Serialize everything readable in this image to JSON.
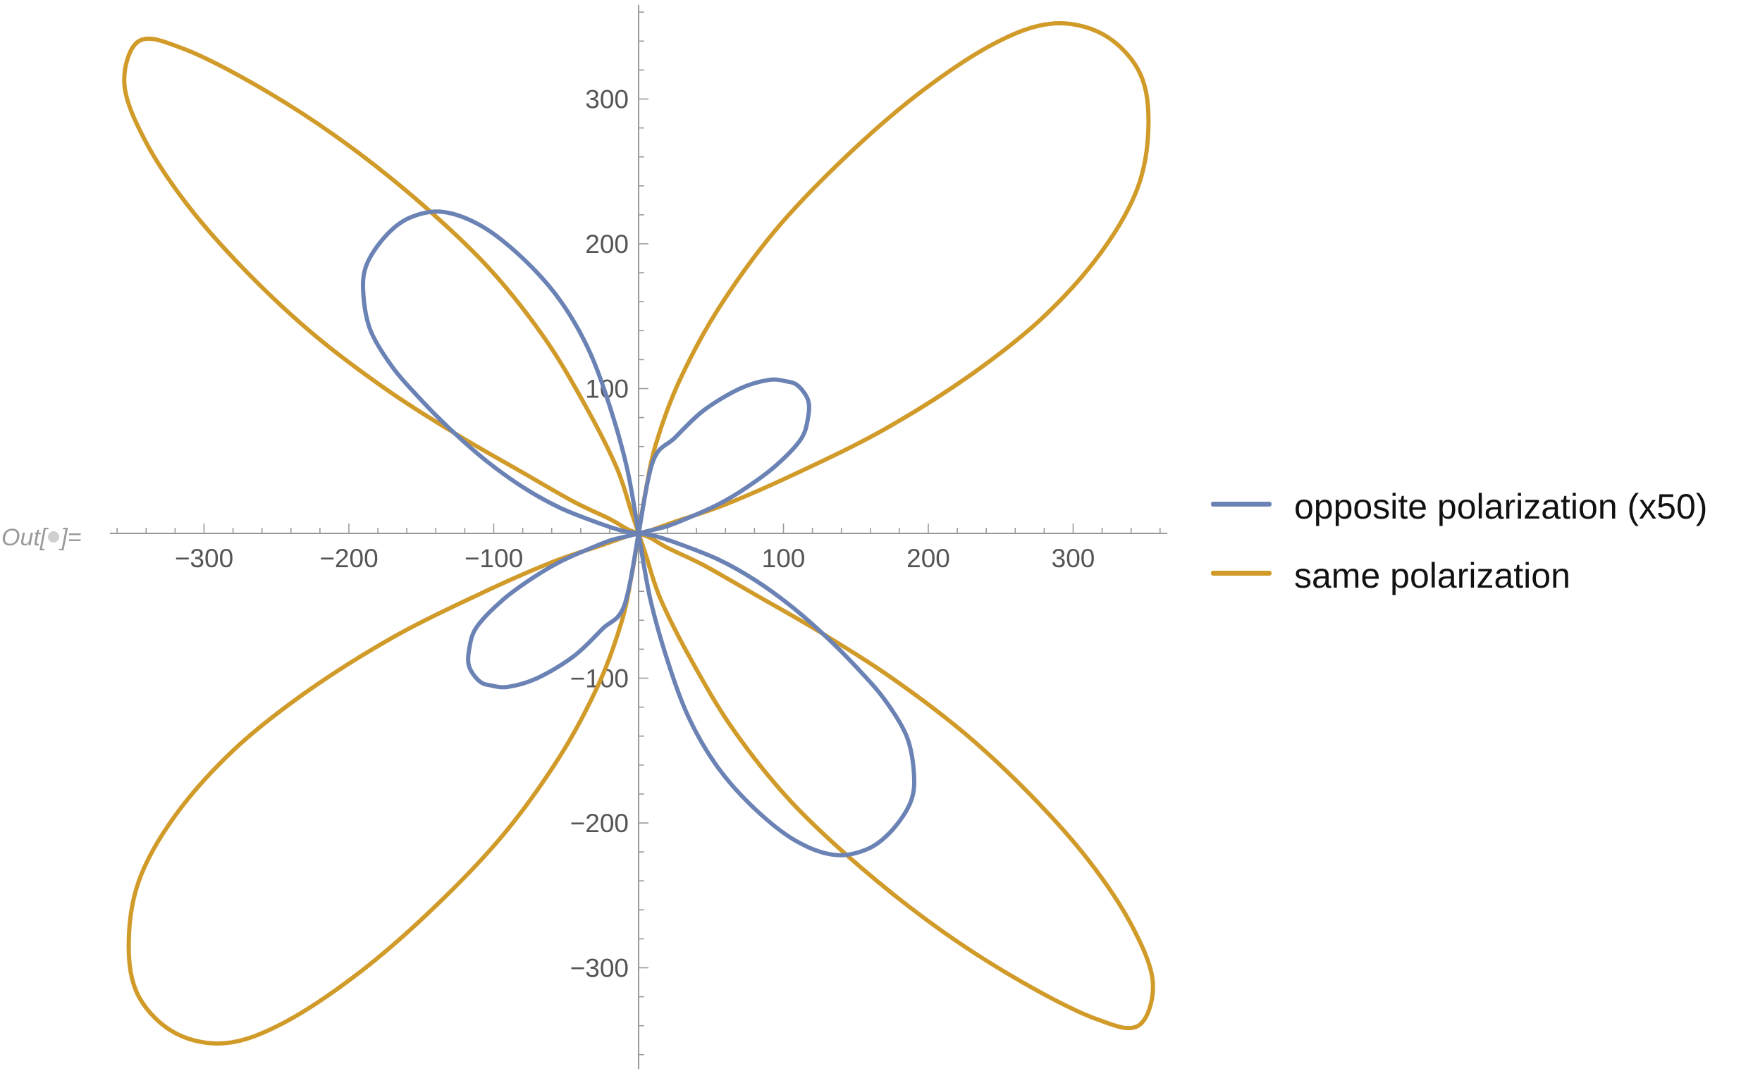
{
  "notebook": {
    "out_prefix": "Out[",
    "out_suffix": "]="
  },
  "colors": {
    "opposite": "#6B82B5",
    "same": "#D19B2A",
    "axis": "#9a9a9a",
    "text": "#555555"
  },
  "legend": {
    "items": [
      {
        "label": "opposite polarization (x50)",
        "color": "#6B82B5"
      },
      {
        "label": "same polarization",
        "color": "#D19B2A"
      }
    ]
  },
  "chart_data": {
    "type": "line",
    "title": "",
    "xlabel": "",
    "ylabel": "",
    "xlim": [
      -365,
      365
    ],
    "ylim": [
      -370,
      365
    ],
    "x_ticks": [
      -300,
      -200,
      -100,
      100,
      200,
      300
    ],
    "y_ticks": [
      -300,
      -200,
      -100,
      100,
      200,
      300
    ],
    "x_tick_labels": [
      "−300",
      "−200",
      "−100",
      "100",
      "200",
      "300"
    ],
    "y_tick_labels": [
      "−300",
      "−200",
      "−100",
      "100",
      "200",
      "300"
    ],
    "grid": false,
    "legend_position": "right",
    "series": [
      {
        "name": "opposite polarization (x50)",
        "color": "#6B82B5",
        "x": [
          0,
          -8,
          -20,
          -35,
          -55,
          -80,
          -108,
          -135,
          -158,
          -175,
          -188,
          -190,
          -185,
          -170,
          -150,
          -128,
          -105,
          -80,
          -55,
          -30,
          -12,
          0,
          0,
          10,
          25,
          45,
          70,
          90,
          102,
          110,
          117,
          117,
          112,
          95,
          75,
          55,
          35,
          20,
          8,
          0,
          0,
          8,
          20,
          35,
          55,
          80,
          108,
          135,
          158,
          175,
          188,
          190,
          185,
          170,
          150,
          128,
          105,
          80,
          55,
          30,
          12,
          0,
          0,
          -10,
          -25,
          -45,
          -70,
          -90,
          -102,
          -110,
          -117,
          -117,
          -112,
          -95,
          -75,
          -55,
          -35,
          -20,
          -8,
          0
        ],
        "y": [
          0,
          45,
          88,
          128,
          162,
          190,
          212,
          222,
          218,
          205,
          185,
          165,
          140,
          115,
          92,
          70,
          50,
          32,
          18,
          8,
          2,
          0,
          0,
          50,
          66,
          85,
          100,
          106,
          105,
          102,
          92,
          80,
          65,
          47,
          32,
          20,
          11,
          5,
          2,
          0,
          0,
          -45,
          -88,
          -128,
          -162,
          -190,
          -212,
          -222,
          -218,
          -205,
          -185,
          -165,
          -140,
          -115,
          -92,
          -70,
          -50,
          -32,
          -18,
          -8,
          -2,
          0,
          0,
          -50,
          -66,
          -85,
          -100,
          -106,
          -105,
          -102,
          -92,
          -80,
          -65,
          -47,
          -32,
          -20,
          -11,
          -5,
          -2,
          0
        ]
      },
      {
        "name": "same polarization",
        "color": "#D19B2A",
        "x": [
          0,
          5,
          12,
          28,
          55,
          95,
          145,
          195,
          245,
          285,
          320,
          345,
          352,
          345,
          320,
          280,
          230,
          170,
          110,
          60,
          25,
          8,
          0,
          0,
          -5,
          -15,
          -35,
          -65,
          -105,
          -155,
          -210,
          -265,
          -315,
          -345,
          -355,
          -340,
          -310,
          -270,
          -225,
          -175,
          -125,
          -80,
          -45,
          -20,
          -8,
          0,
          0,
          -5,
          -12,
          -28,
          -55,
          -95,
          -145,
          -195,
          -245,
          -285,
          -320,
          -345,
          -352,
          -345,
          -320,
          -280,
          -230,
          -170,
          -110,
          -60,
          -25,
          -8,
          0,
          0,
          5,
          15,
          35,
          65,
          105,
          155,
          210,
          265,
          315,
          345,
          355,
          340,
          310,
          270,
          225,
          175,
          125,
          80,
          45,
          20,
          8,
          0
        ],
        "y": [
          0,
          30,
          62,
          105,
          155,
          210,
          262,
          305,
          338,
          352,
          345,
          320,
          285,
          240,
          195,
          150,
          110,
          72,
          42,
          20,
          8,
          2,
          0,
          0,
          15,
          45,
          85,
          135,
          185,
          232,
          275,
          310,
          335,
          340,
          310,
          270,
          225,
          180,
          138,
          100,
          68,
          42,
          22,
          10,
          3,
          0,
          0,
          -30,
          -62,
          -105,
          -155,
          -210,
          -262,
          -305,
          -338,
          -352,
          -345,
          -320,
          -285,
          -240,
          -195,
          -150,
          -110,
          -72,
          -42,
          -20,
          -8,
          -2,
          0,
          0,
          -15,
          -45,
          -85,
          -135,
          -185,
          -232,
          -275,
          -310,
          -335,
          -340,
          -310,
          -270,
          -225,
          -180,
          -138,
          -100,
          -68,
          -42,
          -22,
          -10,
          -3,
          0
        ]
      }
    ]
  }
}
